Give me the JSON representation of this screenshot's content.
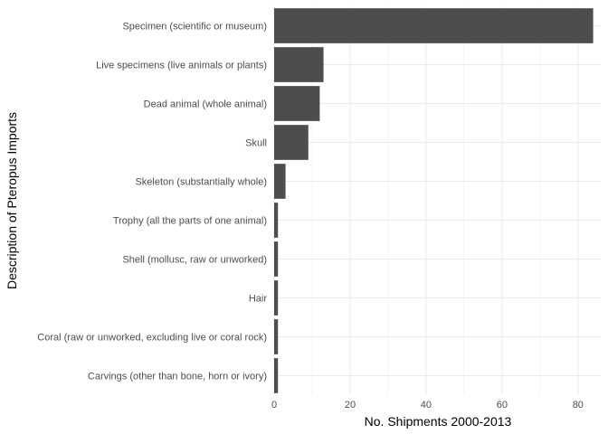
{
  "chart_data": {
    "type": "bar",
    "orientation": "horizontal",
    "categories": [
      "Specimen (scientific or museum)",
      "Live specimens (live animals or plants)",
      "Dead animal (whole animal)",
      "Skull",
      "Skeleton (substantially whole)",
      "Trophy (all the parts of one animal)",
      "Shell (mollusc, raw or unworked)",
      "Hair",
      "Coral (raw or unworked, excluding live or coral rock)",
      "Carvings (other than bone, horn or ivory)"
    ],
    "values": [
      84,
      13,
      12,
      9,
      3,
      1,
      1,
      1,
      1,
      1
    ],
    "xlabel": "No. Shipments 2000-2013",
    "ylabel": "Description of Pteropus Imports",
    "xlim": [
      0,
      86
    ],
    "x_ticks": [
      "0",
      "20",
      "40",
      "60",
      "80"
    ],
    "grid": true,
    "bar_color": "#4d4d4d",
    "grid_color": "#ebebeb"
  }
}
